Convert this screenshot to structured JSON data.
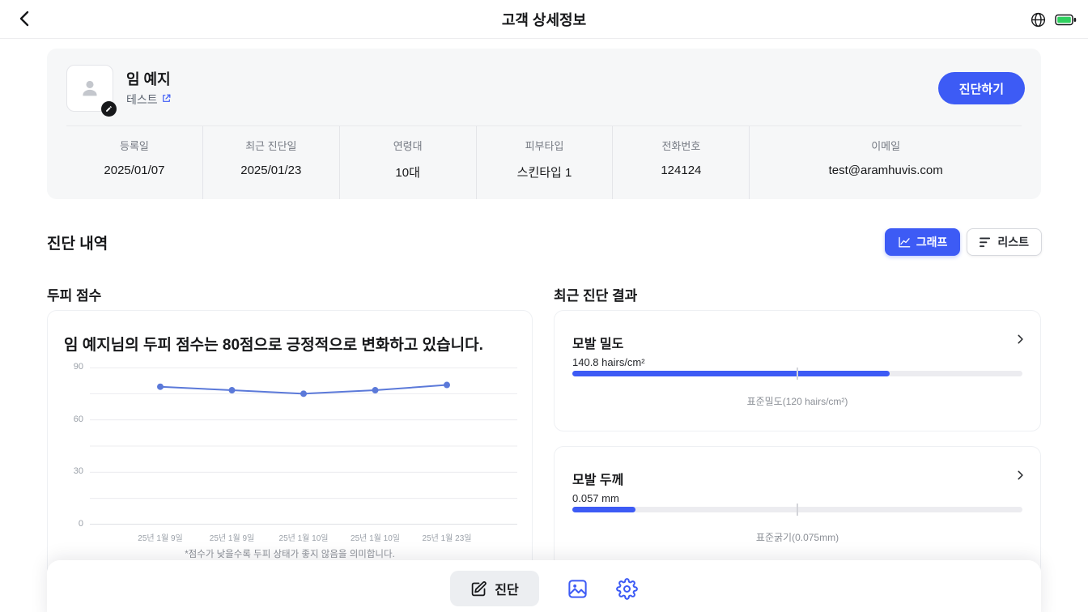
{
  "colors": {
    "accent": "#3d5bf5",
    "chart_line": "#5b79d9",
    "battery_fill": "#2fd05f"
  },
  "header": {
    "title": "고객 상세정보"
  },
  "profile": {
    "name": "임 예지",
    "link_label": "테스트",
    "diagnose_button": "진단하기",
    "fields": [
      {
        "label": "등록일",
        "value": "2025/01/07"
      },
      {
        "label": "최근 진단일",
        "value": "2025/01/23"
      },
      {
        "label": "연령대",
        "value": "10대"
      },
      {
        "label": "피부타입",
        "value": "스킨타입 1"
      },
      {
        "label": "전화번호",
        "value": "124124"
      },
      {
        "label": "이메일",
        "value": "test@aramhuvis.com"
      }
    ]
  },
  "history": {
    "section_title": "진단 내역",
    "graph_tab": "그래프",
    "list_tab": "리스트",
    "scalp_title": "두피 점수",
    "recent_title": "최근 진단 결과"
  },
  "scalp": {
    "message": "임 예지님의 두피 점수는 80점으로 긍정적으로 변화하고 있습니다.",
    "footnote": "*점수가 낮을수록 두피 상태가 좋지 않음을 의미합니다."
  },
  "chart_data": {
    "type": "line",
    "title": "두피 점수",
    "x": [
      "25년 1월 9일",
      "25년 1월 9일",
      "25년 1월 10일",
      "25년 1월 10일",
      "25년 1월 23일"
    ],
    "values": [
      79,
      77,
      75,
      77,
      80
    ],
    "ylim": [
      0,
      90
    ],
    "yticks": [
      0,
      30,
      60,
      90
    ],
    "grid_step": 15,
    "grid": true,
    "legend": false,
    "line_color": "#5b79d9"
  },
  "recent": {
    "cards": [
      {
        "title": "모발 밀도",
        "value": "140.8 hairs/cm²",
        "standard_label": "표준밀도(120 hairs/cm²)",
        "fill_percent": 70.5,
        "marker_percent": 50
      },
      {
        "title": "모발 두께",
        "value": "0.057 mm",
        "standard_label": "표준굵기(0.075mm)",
        "fill_percent": 14,
        "marker_percent": 50
      }
    ]
  },
  "bottom_bar": {
    "diagnose_label": "진단"
  }
}
